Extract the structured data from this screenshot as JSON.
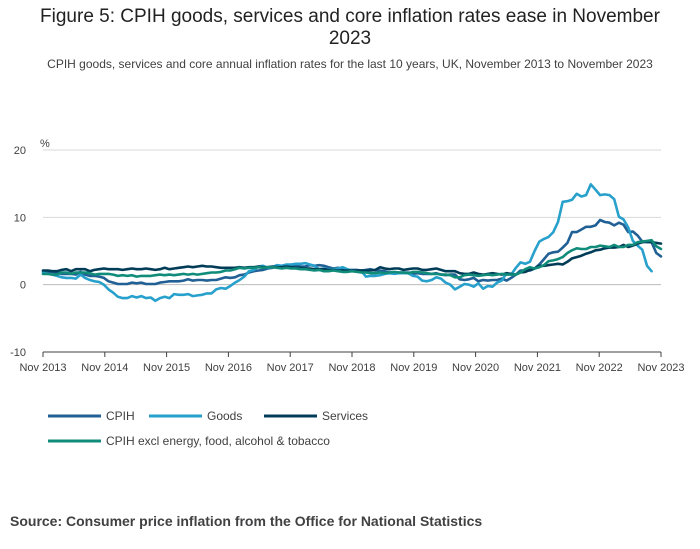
{
  "title": "Figure 5: CPIH goods, services and core inflation rates ease in November 2023",
  "subtitle": "CPIH goods, services and core annual inflation rates for the last 10 years, UK, November 2013 to November 2023",
  "source": "Source: Consumer price inflation from the Office for National Statistics",
  "chart_data": {
    "type": "line",
    "ylabel": "%",
    "xlabel": "",
    "ylim": [
      -10,
      20
    ],
    "yticks": [
      -10,
      0,
      10,
      20
    ],
    "xticks": [
      "Nov 2013",
      "Nov 2014",
      "Nov 2015",
      "Nov 2016",
      "Nov 2017",
      "Nov 2018",
      "Nov 2019",
      "Nov 2020",
      "Nov 2021",
      "Nov 2022",
      "Nov 2023"
    ],
    "x_start": "Nov 2013",
    "x_end": "Nov 2023",
    "grid": true,
    "legend_position": "bottom",
    "series": [
      {
        "name": "CPIH",
        "color": "#206095",
        "values": [
          2.0,
          1.9,
          1.9,
          1.8,
          1.6,
          1.6,
          1.6,
          1.5,
          1.9,
          1.5,
          1.3,
          1.3,
          1.2,
          1.0,
          0.5,
          0.3,
          0.1,
          0.1,
          0.1,
          0.3,
          0.2,
          0.3,
          0.1,
          0.1,
          0.1,
          0.3,
          0.4,
          0.5,
          0.5,
          0.5,
          0.6,
          0.8,
          0.6,
          0.7,
          0.7,
          0.6,
          0.7,
          0.7,
          0.9,
          1.1,
          1.0,
          1.1,
          1.4,
          1.5,
          1.8,
          2.0,
          2.1,
          2.2,
          2.4,
          2.5,
          2.7,
          2.6,
          2.7,
          2.8,
          2.8,
          2.7,
          2.7,
          2.9,
          2.8,
          2.9,
          2.8,
          2.6,
          2.4,
          2.5,
          2.3,
          2.2,
          2.2,
          2.2,
          2.1,
          2.2,
          2.3,
          2.1,
          2.1,
          2.0,
          1.8,
          1.8,
          1.8,
          1.8,
          1.8,
          1.6,
          1.7,
          1.6,
          1.6,
          1.6,
          1.7,
          1.5,
          1.4,
          1.5,
          1.5,
          0.8,
          0.7,
          0.8,
          1.0,
          0.5,
          0.7,
          0.6,
          0.7,
          0.7,
          0.9,
          0.6,
          1.0,
          1.5,
          2.1,
          2.1,
          2.1,
          2.4,
          3.0,
          3.8,
          4.6,
          4.8,
          4.9,
          5.5,
          6.2,
          7.8,
          7.8,
          8.2,
          8.6,
          8.6,
          8.8,
          9.6,
          9.3,
          9.2,
          8.8,
          9.2,
          8.9,
          7.8,
          7.9,
          7.3,
          6.4,
          6.3,
          6.3,
          4.7,
          4.2
        ]
      },
      {
        "name": "Goods",
        "color": "#27a0cc",
        "values": [
          1.8,
          1.6,
          1.5,
          1.3,
          1.1,
          1.0,
          1.0,
          0.9,
          1.5,
          1.0,
          0.7,
          0.5,
          0.4,
          0.0,
          -0.7,
          -1.2,
          -1.8,
          -2.0,
          -2.0,
          -1.7,
          -1.9,
          -1.7,
          -2.0,
          -1.9,
          -2.4,
          -2.0,
          -1.8,
          -2.0,
          -1.4,
          -1.5,
          -1.5,
          -1.4,
          -1.7,
          -1.6,
          -1.5,
          -1.3,
          -1.3,
          -0.7,
          -0.5,
          -0.6,
          -0.2,
          0.3,
          0.7,
          1.2,
          2.0,
          2.2,
          2.7,
          2.8,
          2.5,
          2.6,
          2.9,
          2.8,
          3.0,
          3.0,
          3.1,
          3.1,
          3.2,
          3.0,
          2.8,
          2.3,
          2.4,
          2.3,
          2.3,
          2.4,
          2.6,
          2.3,
          2.1,
          2.1,
          2.0,
          1.2,
          1.3,
          1.3,
          1.4,
          1.6,
          1.7,
          1.6,
          1.7,
          1.7,
          1.7,
          1.3,
          1.2,
          0.6,
          0.5,
          0.7,
          1.1,
          0.9,
          0.3,
          0.0,
          -0.7,
          -0.3,
          0.1,
          0.0,
          -0.3,
          0.2,
          -0.6,
          -0.2,
          -0.3,
          0.3,
          0.6,
          1.7,
          1.5,
          2.5,
          3.3,
          3.1,
          3.4,
          5.0,
          6.4,
          6.8,
          7.1,
          7.8,
          9.3,
          12.3,
          12.4,
          12.6,
          13.5,
          13.1,
          13.3,
          14.9,
          14.1,
          13.3,
          13.4,
          13.3,
          12.7,
          10.1,
          9.7,
          8.5,
          6.5,
          5.8,
          5.2,
          2.8,
          2.0
        ]
      },
      {
        "name": "Services",
        "color": "#003c57",
        "values": [
          2.1,
          2.1,
          2.0,
          2.0,
          2.2,
          2.3,
          2.0,
          2.3,
          2.3,
          2.3,
          2.0,
          2.2,
          2.3,
          2.4,
          2.3,
          2.3,
          2.3,
          2.2,
          2.3,
          2.4,
          2.3,
          2.3,
          2.4,
          2.3,
          2.2,
          2.3,
          2.5,
          2.3,
          2.4,
          2.5,
          2.6,
          2.7,
          2.6,
          2.7,
          2.8,
          2.7,
          2.7,
          2.6,
          2.5,
          2.5,
          2.5,
          2.5,
          2.6,
          2.5,
          2.6,
          2.6,
          2.7,
          2.6,
          2.6,
          2.7,
          2.6,
          2.6,
          2.7,
          2.6,
          2.5,
          2.5,
          2.4,
          2.4,
          2.3,
          2.3,
          2.3,
          2.2,
          2.2,
          2.1,
          2.1,
          2.1,
          2.1,
          2.1,
          2.1,
          2.1,
          2.1,
          2.2,
          2.6,
          2.4,
          2.3,
          2.4,
          2.4,
          2.2,
          2.3,
          2.4,
          2.4,
          2.2,
          2.2,
          2.3,
          2.4,
          2.2,
          2.0,
          2.0,
          2.0,
          1.7,
          1.6,
          1.6,
          1.8,
          1.6,
          1.5,
          1.6,
          1.7,
          1.6,
          1.5,
          1.7,
          1.6,
          1.5,
          1.8,
          1.9,
          2.2,
          2.4,
          2.8,
          2.8,
          2.9,
          3.0,
          3.1,
          3.0,
          3.4,
          3.9,
          4.1,
          4.3,
          4.6,
          4.8,
          5.1,
          5.2,
          5.4,
          5.5,
          5.5,
          5.6,
          5.9,
          5.6,
          5.8,
          6.1,
          6.3,
          6.4,
          6.3,
          6.2,
          6.1
        ]
      },
      {
        "name": "CPIH excl energy, food, alcohol & tobacco",
        "color": "#118c7b",
        "values": [
          1.6,
          1.6,
          1.5,
          1.5,
          1.8,
          1.8,
          1.6,
          1.8,
          1.8,
          1.8,
          1.7,
          1.5,
          1.6,
          1.6,
          1.6,
          1.5,
          1.3,
          1.4,
          1.3,
          1.4,
          1.2,
          1.3,
          1.3,
          1.3,
          1.4,
          1.5,
          1.4,
          1.5,
          1.4,
          1.5,
          1.6,
          1.5,
          1.6,
          1.5,
          1.6,
          1.7,
          1.8,
          1.8,
          1.9,
          2.1,
          2.1,
          2.3,
          2.5,
          2.4,
          2.5,
          2.5,
          2.6,
          2.5,
          2.6,
          2.6,
          2.5,
          2.4,
          2.5,
          2.4,
          2.4,
          2.3,
          2.3,
          2.2,
          2.1,
          2.2,
          2.0,
          2.0,
          2.1,
          2.0,
          1.9,
          1.9,
          2.0,
          1.9,
          1.8,
          1.8,
          1.7,
          1.7,
          1.8,
          1.7,
          1.8,
          1.9,
          1.8,
          1.8,
          1.7,
          1.9,
          1.9,
          1.8,
          1.7,
          1.6,
          1.6,
          1.5,
          1.5,
          1.4,
          1.1,
          1.1,
          1.4,
          1.5,
          1.4,
          1.3,
          1.4,
          1.5,
          1.4,
          1.5,
          1.6,
          1.5,
          1.5,
          1.5,
          1.8,
          2.3,
          2.6,
          2.4,
          2.6,
          2.9,
          3.5,
          3.6,
          3.8,
          4.1,
          4.7,
          5.1,
          5.4,
          5.3,
          5.3,
          5.6,
          5.6,
          5.8,
          5.7,
          5.6,
          5.9,
          5.6,
          5.6,
          5.9,
          5.9,
          6.3,
          6.4,
          6.5,
          6.6,
          5.7,
          5.3
        ]
      }
    ]
  }
}
